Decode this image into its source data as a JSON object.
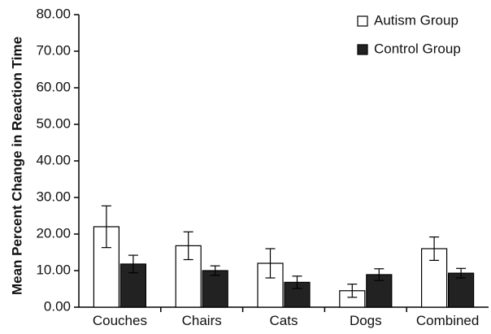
{
  "chart_data": {
    "type": "bar",
    "title": "",
    "xlabel": "",
    "ylabel": "Mean Percent Change in Reaction Time",
    "ylim": [
      0,
      80
    ],
    "yticks": [
      "0.00",
      "10.00",
      "20.00",
      "30.00",
      "40.00",
      "50.00",
      "60.00",
      "70.00",
      "80.00"
    ],
    "categories": [
      "Couches",
      "Chairs",
      "Cats",
      "Dogs",
      "Combined"
    ],
    "series": [
      {
        "name": "Autism Group",
        "fill": "#ffffff",
        "values": [
          22.0,
          16.8,
          12.0,
          4.5,
          16.0
        ],
        "error": [
          5.7,
          3.8,
          4.0,
          1.8,
          3.2
        ]
      },
      {
        "name": "Control Group",
        "fill": "#222222",
        "values": [
          11.8,
          10.0,
          6.8,
          8.9,
          9.3
        ],
        "error": [
          2.4,
          1.3,
          1.7,
          1.6,
          1.3
        ]
      }
    ],
    "legend_position": "top-right",
    "grid": false
  }
}
